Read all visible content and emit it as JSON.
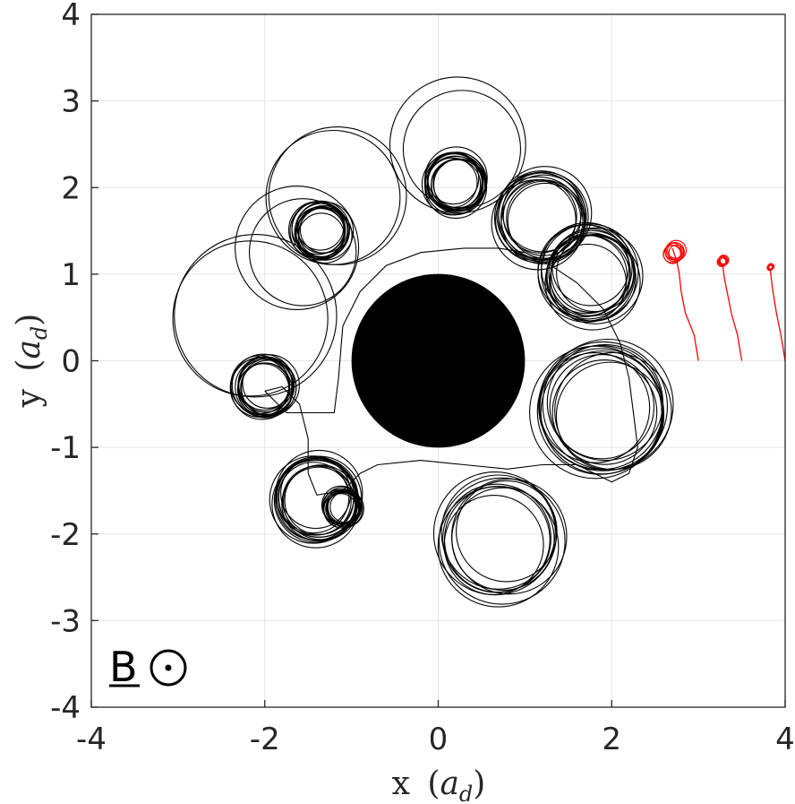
{
  "chart_data": {
    "type": "line",
    "title": "",
    "xlabel": "x",
    "xlabel_unit": "a",
    "xlabel_unit_sub": "d",
    "ylabel": "y",
    "ylabel_unit": "a",
    "ylabel_unit_sub": "d",
    "xlim": [
      -4,
      4
    ],
    "ylim": [
      -4,
      4
    ],
    "xticks": [
      -4,
      -2,
      0,
      2,
      4
    ],
    "yticks": [
      -4,
      -3,
      -2,
      -1,
      0,
      1,
      2,
      3,
      4
    ],
    "xtick_labels": [
      "-4",
      "-2",
      "0",
      "2",
      "4"
    ],
    "ytick_labels": [
      "-4",
      "-3",
      "-2",
      "-1",
      "0",
      "1",
      "2",
      "3",
      "4"
    ],
    "grid": true,
    "field_annotation": {
      "text": "B",
      "symbol": "out-of-page-dot",
      "position": "bottom-left"
    },
    "central_disk": {
      "center": [
        0,
        0
      ],
      "radius": 1.0,
      "color": "#000000"
    },
    "colors": {
      "black_traj": "#000000",
      "red_traj": "#ff0000",
      "grid": "#e6e6e6",
      "axes": "#262626"
    },
    "gyro_clusters": [
      {
        "cx": -2.0,
        "cy": -0.3,
        "r": 0.32,
        "loops": 14,
        "spread": 0.06
      },
      {
        "cx": -2.12,
        "cy": 0.5,
        "r": 0.85,
        "loops": 2,
        "spread": 0.12
      },
      {
        "cx": -1.35,
        "cy": 1.5,
        "r": 0.3,
        "loops": 14,
        "spread": 0.06
      },
      {
        "cx": -1.6,
        "cy": 1.3,
        "r": 0.7,
        "loops": 2,
        "spread": 0.15
      },
      {
        "cx": -1.2,
        "cy": 1.9,
        "r": 0.85,
        "loops": 2,
        "spread": 0.1
      },
      {
        "cx": 0.2,
        "cy": 2.05,
        "r": 0.32,
        "loops": 14,
        "spread": 0.06
      },
      {
        "cx": 0.25,
        "cy": 2.45,
        "r": 0.7,
        "loops": 2,
        "spread": 0.12
      },
      {
        "cx": 1.2,
        "cy": 1.65,
        "r": 0.48,
        "loops": 12,
        "spread": 0.08
      },
      {
        "cx": 1.75,
        "cy": 1.0,
        "r": 0.5,
        "loops": 14,
        "spread": 0.1
      },
      {
        "cx": 1.9,
        "cy": -0.55,
        "r": 0.68,
        "loops": 12,
        "spread": 0.12
      },
      {
        "cx": 0.7,
        "cy": -2.05,
        "r": 0.65,
        "loops": 10,
        "spread": 0.12
      },
      {
        "cx": -1.4,
        "cy": -1.6,
        "r": 0.45,
        "loops": 14,
        "spread": 0.07
      },
      {
        "cx": -1.1,
        "cy": -1.7,
        "r": 0.2,
        "loops": 12,
        "spread": 0.04
      }
    ],
    "black_path": {
      "x": [
        -2.0,
        -1.75,
        -1.4,
        -1.2,
        -1.15,
        -1.1,
        -0.9,
        -0.6,
        -0.2,
        0.3,
        0.7,
        1.0,
        1.3,
        1.6,
        1.9,
        2.1,
        2.2,
        2.25,
        2.3,
        2.2,
        2.0,
        1.6,
        1.2,
        0.8,
        0.3,
        -0.2,
        -0.7,
        -0.9,
        -1.1,
        -1.4,
        -1.5,
        -1.5,
        -1.6,
        -1.8,
        -2.0
      ],
      "y": [
        -0.35,
        -0.6,
        -0.6,
        -0.6,
        -0.2,
        0.4,
        0.8,
        1.1,
        1.25,
        1.3,
        1.3,
        1.25,
        1.1,
        0.9,
        0.6,
        0.2,
        -0.2,
        -0.6,
        -1.0,
        -1.3,
        -1.4,
        -1.2,
        -1.2,
        -1.25,
        -1.2,
        -1.15,
        -1.2,
        -1.3,
        -1.5,
        -1.55,
        -1.3,
        -0.9,
        -0.5,
        -0.3,
        -0.35
      ]
    },
    "series": [
      {
        "color": "#ff0000",
        "x0": 3.0,
        "y0": 0.0,
        "path": {
          "x": [
            3.0,
            2.95,
            2.85,
            2.8,
            2.78,
            2.75,
            2.7
          ],
          "y": [
            0.0,
            0.3,
            0.55,
            0.8,
            1.0,
            1.15,
            1.3
          ]
        },
        "loop": {
          "cx": 2.72,
          "cy": 1.25,
          "r": 0.1,
          "turns": 7
        }
      },
      {
        "color": "#ff0000",
        "x0": 3.5,
        "y0": 0.0,
        "path": {
          "x": [
            3.5,
            3.45,
            3.38,
            3.33,
            3.3,
            3.28
          ],
          "y": [
            0.0,
            0.3,
            0.55,
            0.8,
            0.95,
            1.1
          ]
        },
        "loop": {
          "cx": 3.28,
          "cy": 1.15,
          "r": 0.05,
          "turns": 7
        }
      },
      {
        "color": "#ff0000",
        "x0": 4.0,
        "y0": 0.0,
        "path": {
          "x": [
            4.0,
            3.95,
            3.9,
            3.86,
            3.84,
            3.83
          ],
          "y": [
            0.0,
            0.3,
            0.55,
            0.8,
            0.95,
            1.05
          ]
        },
        "loop": {
          "cx": 3.83,
          "cy": 1.08,
          "r": 0.03,
          "turns": 7
        }
      }
    ]
  }
}
